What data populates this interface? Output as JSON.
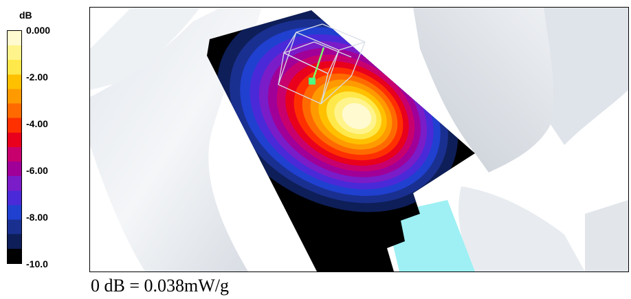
{
  "chart_data": {
    "type": "heatmap",
    "colorbar": {
      "unit": "dB",
      "range": [
        -10,
        0
      ],
      "ticks": [
        "0.000",
        "-2.00",
        "-4.00",
        "-6.00",
        "-8.00",
        "-10.0"
      ],
      "colors": [
        "#fffad0",
        "#fff48c",
        "#ffe84a",
        "#ffc000",
        "#ff9a00",
        "#ff6a00",
        "#ff3000",
        "#e8001c",
        "#c8006e",
        "#a00098",
        "#7a1cc8",
        "#4a2ad8",
        "#2040d0",
        "#1a3090",
        "#0e1e58",
        "#000000"
      ]
    },
    "caption": "0 dB = 0.038mW/g"
  }
}
